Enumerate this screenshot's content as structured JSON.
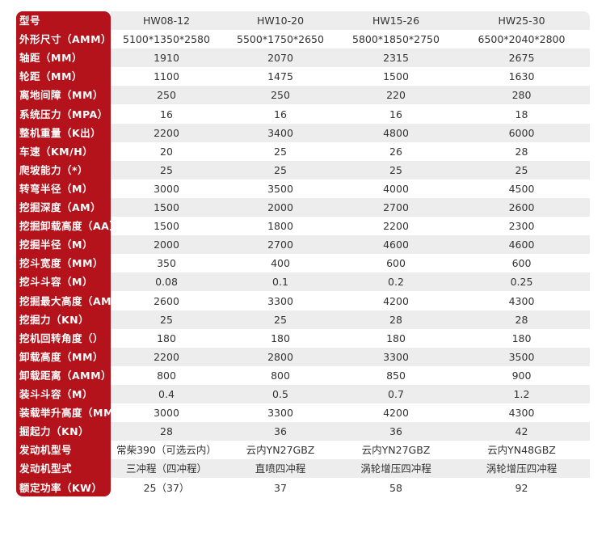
{
  "header": {
    "label": "型号",
    "models": [
      "HW08-12",
      "HW10-20",
      "HW15-26",
      "HW25-30"
    ]
  },
  "rows": [
    {
      "label": "外形尺寸（AMM）",
      "values": [
        "5100*1350*2580",
        "5500*1750*2650",
        "5800*1850*2750",
        "6500*2040*2800"
      ]
    },
    {
      "label": "轴距（MM）",
      "values": [
        "1910",
        "2070",
        "2315",
        "2675"
      ]
    },
    {
      "label": "轮距（MM）",
      "values": [
        "1100",
        "1475",
        "1500",
        "1630"
      ]
    },
    {
      "label": "离地间障（MM）",
      "values": [
        "250",
        "250",
        "220",
        "280"
      ]
    },
    {
      "label": "系统压力（MPA）",
      "values": [
        "16",
        "16",
        "16",
        "18"
      ]
    },
    {
      "label": "整机重量（K出）",
      "values": [
        "2200",
        "3400",
        "4800",
        "6000"
      ]
    },
    {
      "label": "车速（KM/H）",
      "values": [
        "20",
        "25",
        "26",
        "28"
      ]
    },
    {
      "label": "爬坡能力（*）",
      "values": [
        "25",
        "25",
        "25",
        "25"
      ]
    },
    {
      "label": "转弯半径（M）",
      "values": [
        "3000",
        "3500",
        "4000",
        "4500"
      ]
    },
    {
      "label": "挖掘深度（AM）",
      "values": [
        "1500",
        "2000",
        "2700",
        "2600"
      ]
    },
    {
      "label": "挖掘卸载高度（AA）",
      "values": [
        "1500",
        "1800",
        "2200",
        "2300"
      ]
    },
    {
      "label": "挖掘半径（M）",
      "values": [
        "2000",
        "2700",
        "4600",
        "4600"
      ]
    },
    {
      "label": "挖斗宽度（MM）",
      "values": [
        "350",
        "400",
        "600",
        "600"
      ]
    },
    {
      "label": "挖斗斗容（M）",
      "values": [
        "0.08",
        "0.1",
        "0.2",
        "0.25"
      ]
    },
    {
      "label": "挖掘最大高度（AM",
      "values": [
        "2600",
        "3300",
        "4200",
        "4300"
      ]
    },
    {
      "label": "挖掘力（KN）",
      "values": [
        "25",
        "25",
        "28",
        "28"
      ]
    },
    {
      "label": "挖机回转角度（）",
      "values": [
        "180",
        "180",
        "180",
        "180"
      ]
    },
    {
      "label": "卸载高度（MM）",
      "values": [
        "2200",
        "2800",
        "3300",
        "3500"
      ]
    },
    {
      "label": "卸载距离（AMM）",
      "values": [
        "800",
        "800",
        "850",
        "900"
      ]
    },
    {
      "label": "装斗斗容（M）",
      "values": [
        "0.4",
        "0.5",
        "0.7",
        "1.2"
      ]
    },
    {
      "label": "装载举升高度（MM",
      "values": [
        "3000",
        "3300",
        "4200",
        "4300"
      ]
    },
    {
      "label": "掘起力（KN）",
      "values": [
        "28",
        "36",
        "36",
        "42"
      ]
    },
    {
      "label": "发动机型号",
      "values": [
        "常柴390（可选云内）",
        "云内YN27GBZ",
        "云内YN27GBZ",
        "云内YN48GBZ"
      ]
    },
    {
      "label": "发动机型式",
      "values": [
        "三冲程（四冲程）",
        "直喷四冲程",
        "涡轮增压四冲程",
        "涡轮增压四冲程"
      ]
    },
    {
      "label": "额定功率（KW）",
      "values": [
        "25（37）",
        "37",
        "58",
        "92"
      ]
    }
  ]
}
